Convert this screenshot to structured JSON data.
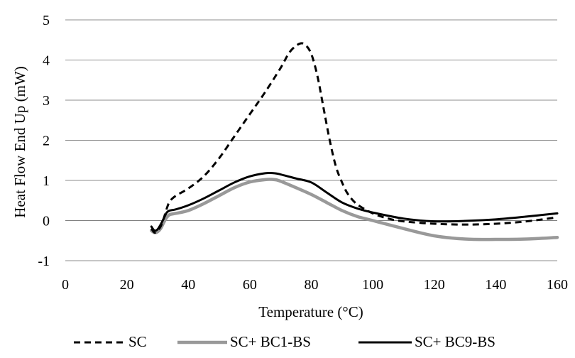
{
  "chart_data": {
    "type": "line",
    "title": "",
    "xlabel": "Temperature (°C)",
    "ylabel": "Heat Flow End Up (mW)",
    "xlim": [
      0,
      160
    ],
    "ylim": [
      -1,
      5
    ],
    "xticks": [
      "0",
      "20",
      "40",
      "60",
      "80",
      "100",
      "120",
      "140",
      "160"
    ],
    "yticks": [
      "5",
      "4",
      "3",
      "2",
      "1",
      "0",
      "-1"
    ],
    "grid": "horizontal",
    "legend_position": "bottom",
    "series": [
      {
        "name": "SC",
        "style": "dashed",
        "color": "#000000",
        "x": [
          28,
          29,
          30,
          31,
          32,
          33,
          34,
          36,
          40,
          45,
          50,
          55,
          60,
          65,
          70,
          73,
          76,
          78,
          80,
          82,
          84,
          86,
          88,
          90,
          92,
          95,
          100,
          105,
          110,
          120,
          130,
          140,
          150,
          160
        ],
        "y": [
          -0.2,
          -0.3,
          -0.25,
          -0.15,
          0.05,
          0.3,
          0.48,
          0.62,
          0.8,
          1.1,
          1.55,
          2.1,
          2.65,
          3.2,
          3.8,
          4.2,
          4.4,
          4.38,
          4.15,
          3.6,
          2.8,
          2.0,
          1.35,
          0.95,
          0.65,
          0.4,
          0.18,
          0.05,
          -0.02,
          -0.08,
          -0.1,
          -0.08,
          -0.02,
          0.08
        ]
      },
      {
        "name": "SC+ BC1-BS",
        "style": "solid",
        "color": "#999999",
        "x": [
          28,
          29,
          30,
          31,
          32,
          33,
          34,
          36,
          40,
          45,
          50,
          55,
          60,
          65,
          68,
          70,
          75,
          80,
          85,
          90,
          95,
          100,
          110,
          120,
          130,
          140,
          150,
          160
        ],
        "y": [
          -0.25,
          -0.3,
          -0.28,
          -0.2,
          -0.05,
          0.08,
          0.15,
          0.18,
          0.25,
          0.42,
          0.62,
          0.82,
          0.96,
          1.02,
          1.02,
          0.98,
          0.82,
          0.65,
          0.45,
          0.25,
          0.1,
          0.0,
          -0.2,
          -0.38,
          -0.46,
          -0.47,
          -0.46,
          -0.42
        ]
      },
      {
        "name": "SC+ BC9-BS",
        "style": "solid",
        "color": "#000000",
        "x": [
          28,
          29,
          30,
          31,
          32,
          33,
          34,
          36,
          40,
          45,
          50,
          55,
          60,
          65,
          68,
          70,
          75,
          80,
          85,
          90,
          95,
          100,
          110,
          120,
          130,
          140,
          150,
          160
        ],
        "y": [
          -0.15,
          -0.25,
          -0.22,
          -0.1,
          0.05,
          0.2,
          0.25,
          0.28,
          0.38,
          0.55,
          0.75,
          0.95,
          1.1,
          1.18,
          1.18,
          1.15,
          1.05,
          0.95,
          0.7,
          0.45,
          0.3,
          0.2,
          0.05,
          -0.02,
          -0.01,
          0.03,
          0.1,
          0.18
        ]
      }
    ]
  }
}
